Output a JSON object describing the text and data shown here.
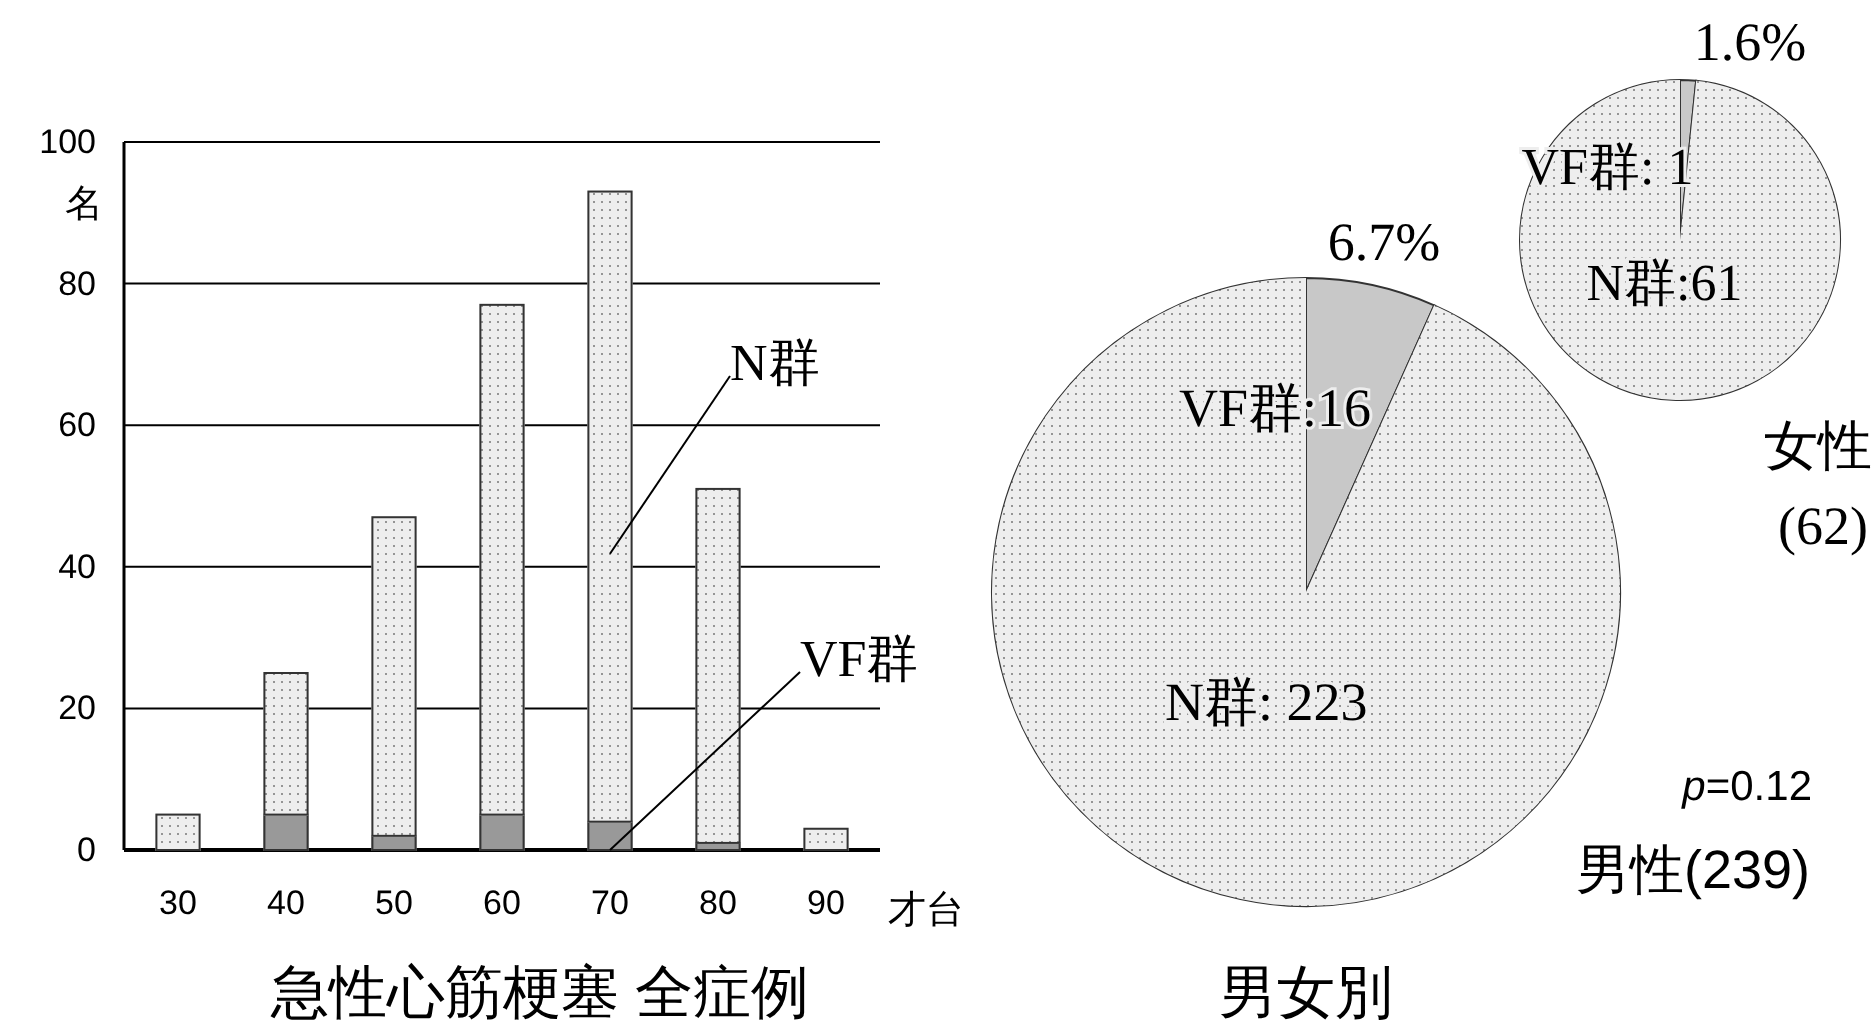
{
  "chart_data": [
    {
      "type": "bar",
      "title": "急性心筋梗塞 全症例",
      "xlabel": "才台",
      "ylabel": "名",
      "categories": [
        "30",
        "40",
        "50",
        "60",
        "70",
        "80",
        "90"
      ],
      "stacked": true,
      "ylim": [
        0,
        100
      ],
      "yticks": [
        0,
        20,
        40,
        60,
        80,
        100
      ],
      "grid": "y",
      "series": [
        {
          "name": "VF群",
          "color": "#999999",
          "values": [
            0,
            5,
            2,
            5,
            4,
            1,
            0
          ]
        },
        {
          "name": "N群",
          "color": "#eeeeee",
          "values": [
            5,
            20,
            45,
            72,
            89,
            50,
            3
          ]
        }
      ]
    },
    {
      "type": "pie",
      "title": "男性(239)",
      "categories": [
        "VF群",
        "N群"
      ],
      "values": [
        16,
        223
      ],
      "colors": [
        "#c8c8c8",
        "#eeeeee"
      ],
      "value_labels": [
        ":16",
        ": 223"
      ],
      "annotations": [
        "6.7%",
        "p=0.12",
        "男女別"
      ]
    },
    {
      "type": "pie",
      "title": "女性",
      "subtitle": "(62)",
      "categories": [
        "VF群",
        "N群"
      ],
      "values": [
        1,
        61
      ],
      "colors": [
        "#c8c8c8",
        "#eeeeee"
      ],
      "value_labels": [
        ": 1",
        ":61"
      ],
      "annotations": [
        "1.6%"
      ]
    }
  ]
}
